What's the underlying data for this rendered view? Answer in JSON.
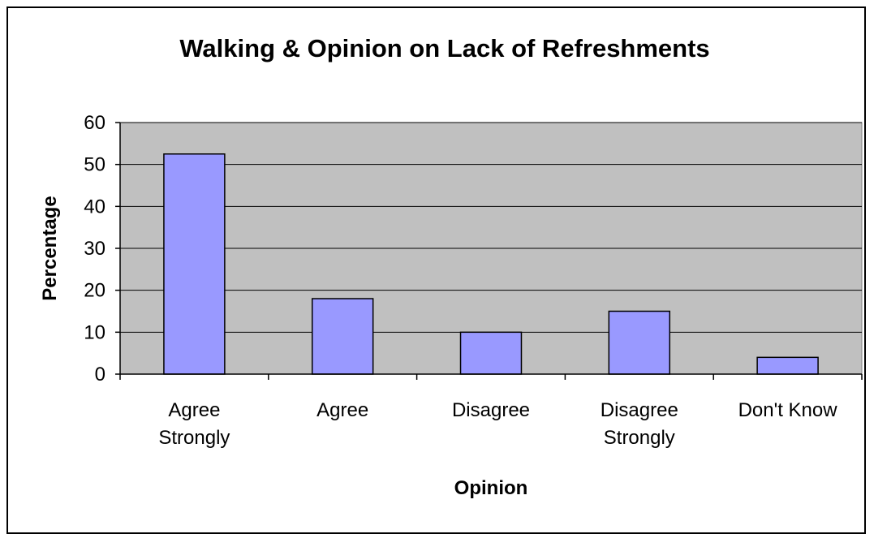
{
  "chart_data": {
    "type": "bar",
    "title": "Walking & Opinion on Lack of Refreshments",
    "xlabel": "Opinion",
    "ylabel": "Percentage",
    "categories": [
      [
        "Agree",
        "Strongly"
      ],
      [
        "Agree"
      ],
      [
        "Disagree"
      ],
      [
        "Disagree",
        "Strongly"
      ],
      [
        "Don't Know"
      ]
    ],
    "values": [
      52.5,
      18,
      10,
      15,
      4
    ],
    "ylim": [
      0,
      60
    ],
    "yticks": [
      0,
      10,
      20,
      30,
      40,
      50,
      60
    ],
    "grid": true,
    "legend": "none",
    "colors": {
      "bar_fill": "#9999ff",
      "bar_stroke": "#000000",
      "plot_background": "#c0c0c0",
      "gridline": "#000000"
    }
  }
}
